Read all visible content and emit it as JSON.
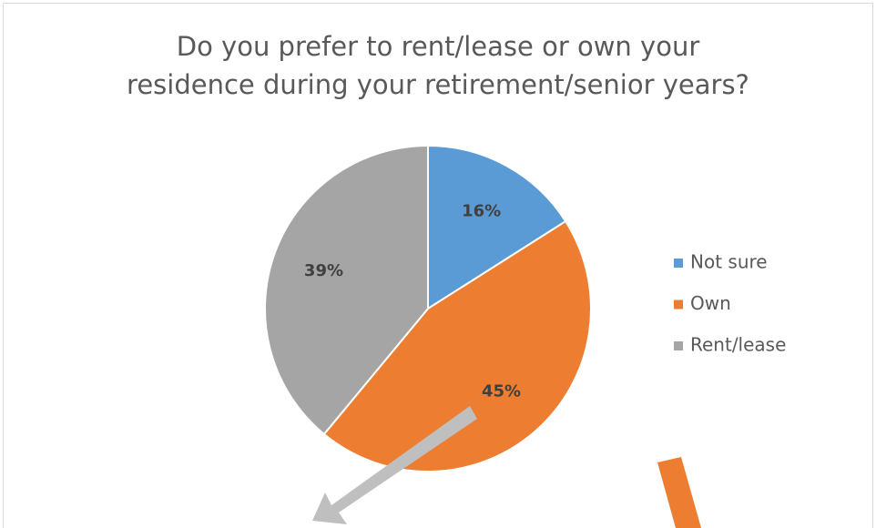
{
  "chart_data": {
    "type": "pie",
    "title": "Do you prefer to rent/lease or own your residence during your retirement/senior years?",
    "categories": [
      "Not sure",
      "Own",
      "Rent/lease"
    ],
    "values": [
      16,
      45,
      39
    ],
    "value_labels": [
      "16%",
      "45%",
      "39%"
    ],
    "colors": [
      "#5b9bd5",
      "#ed7d31",
      "#a5a5a5"
    ],
    "legend": "right"
  }
}
